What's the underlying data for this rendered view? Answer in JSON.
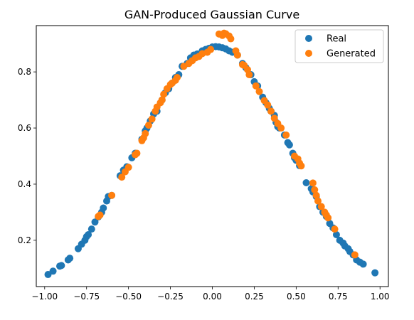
{
  "chart_data": {
    "type": "scatter",
    "title": "GAN-Produced Gaussian Curve",
    "xlabel": "",
    "ylabel": "",
    "xlim": [
      -1.05,
      1.05
    ],
    "ylim": [
      0.035,
      0.965
    ],
    "xticks": [
      -1.0,
      -0.75,
      -0.5,
      -0.25,
      0.0,
      0.25,
      0.5,
      0.75,
      1.0
    ],
    "xtick_labels": [
      "−1.00",
      "−0.75",
      "−0.50",
      "−0.25",
      "0.00",
      "0.25",
      "0.50",
      "0.75",
      "1.00"
    ],
    "yticks": [
      0.2,
      0.4,
      0.6,
      0.8
    ],
    "ytick_labels": [
      "0.2",
      "0.4",
      "0.6",
      "0.8"
    ],
    "grid": false,
    "legend_position": "top-right",
    "series": [
      {
        "name": "Real",
        "color": "#1f77b4",
        "points": [
          [
            -0.98,
            0.078
          ],
          [
            -0.95,
            0.09
          ],
          [
            -0.91,
            0.108
          ],
          [
            -0.9,
            0.11
          ],
          [
            -0.86,
            0.13
          ],
          [
            -0.85,
            0.136
          ],
          [
            -0.8,
            0.17
          ],
          [
            -0.78,
            0.186
          ],
          [
            -0.76,
            0.2
          ],
          [
            -0.75,
            0.213
          ],
          [
            -0.74,
            0.22
          ],
          [
            -0.72,
            0.24
          ],
          [
            -0.7,
            0.265
          ],
          [
            -0.68,
            0.283
          ],
          [
            -0.66,
            0.3
          ],
          [
            -0.65,
            0.315
          ],
          [
            -0.63,
            0.34
          ],
          [
            -0.62,
            0.356
          ],
          [
            -0.6,
            0.36
          ],
          [
            -0.55,
            0.43
          ],
          [
            -0.53,
            0.45
          ],
          [
            -0.51,
            0.462
          ],
          [
            -0.48,
            0.494
          ],
          [
            -0.46,
            0.51
          ],
          [
            -0.42,
            0.56
          ],
          [
            -0.4,
            0.59
          ],
          [
            -0.39,
            0.6
          ],
          [
            -0.37,
            0.625
          ],
          [
            -0.35,
            0.65
          ],
          [
            -0.33,
            0.66
          ],
          [
            -0.3,
            0.7
          ],
          [
            -0.28,
            0.726
          ],
          [
            -0.26,
            0.74
          ],
          [
            -0.24,
            0.76
          ],
          [
            -0.22,
            0.78
          ],
          [
            -0.2,
            0.79
          ],
          [
            -0.18,
            0.82
          ],
          [
            -0.15,
            0.83
          ],
          [
            -0.13,
            0.85
          ],
          [
            -0.11,
            0.86
          ],
          [
            -0.09,
            0.864
          ],
          [
            -0.06,
            0.875
          ],
          [
            -0.04,
            0.88
          ],
          [
            -0.02,
            0.884
          ],
          [
            0.0,
            0.889
          ],
          [
            0.02,
            0.89
          ],
          [
            0.04,
            0.889
          ],
          [
            0.06,
            0.886
          ],
          [
            0.08,
            0.882
          ],
          [
            0.1,
            0.875
          ],
          [
            0.12,
            0.87
          ],
          [
            0.15,
            0.86
          ],
          [
            0.18,
            0.83
          ],
          [
            0.2,
            0.815
          ],
          [
            0.23,
            0.79
          ],
          [
            0.25,
            0.765
          ],
          [
            0.27,
            0.75
          ],
          [
            0.3,
            0.71
          ],
          [
            0.32,
            0.69
          ],
          [
            0.34,
            0.67
          ],
          [
            0.35,
            0.66
          ],
          [
            0.37,
            0.645
          ],
          [
            0.38,
            0.62
          ],
          [
            0.39,
            0.605
          ],
          [
            0.4,
            0.6
          ],
          [
            0.43,
            0.575
          ],
          [
            0.45,
            0.548
          ],
          [
            0.46,
            0.54
          ],
          [
            0.48,
            0.51
          ],
          [
            0.49,
            0.494
          ],
          [
            0.5,
            0.485
          ],
          [
            0.52,
            0.466
          ],
          [
            0.56,
            0.405
          ],
          [
            0.59,
            0.384
          ],
          [
            0.6,
            0.372
          ],
          [
            0.62,
            0.356
          ],
          [
            0.64,
            0.32
          ],
          [
            0.66,
            0.3
          ],
          [
            0.68,
            0.285
          ],
          [
            0.7,
            0.26
          ],
          [
            0.72,
            0.244
          ],
          [
            0.74,
            0.22
          ],
          [
            0.76,
            0.2
          ],
          [
            0.78,
            0.19
          ],
          [
            0.79,
            0.18
          ],
          [
            0.81,
            0.17
          ],
          [
            0.82,
            0.16
          ],
          [
            0.84,
            0.148
          ],
          [
            0.86,
            0.13
          ],
          [
            0.88,
            0.122
          ],
          [
            0.9,
            0.115
          ],
          [
            0.97,
            0.084
          ]
        ]
      },
      {
        "name": "Generated",
        "color": "#ff7f0e",
        "points": [
          [
            -0.68,
            0.285
          ],
          [
            -0.67,
            0.29
          ],
          [
            -0.6,
            0.36
          ],
          [
            -0.54,
            0.425
          ],
          [
            -0.52,
            0.444
          ],
          [
            -0.5,
            0.46
          ],
          [
            -0.46,
            0.505
          ],
          [
            -0.45,
            0.51
          ],
          [
            -0.42,
            0.555
          ],
          [
            -0.41,
            0.565
          ],
          [
            -0.4,
            0.58
          ],
          [
            -0.38,
            0.61
          ],
          [
            -0.36,
            0.632
          ],
          [
            -0.34,
            0.66
          ],
          [
            -0.33,
            0.675
          ],
          [
            -0.31,
            0.69
          ],
          [
            -0.3,
            0.7
          ],
          [
            -0.29,
            0.72
          ],
          [
            -0.27,
            0.74
          ],
          [
            -0.25,
            0.755
          ],
          [
            -0.24,
            0.76
          ],
          [
            -0.22,
            0.77
          ],
          [
            -0.21,
            0.78
          ],
          [
            -0.17,
            0.82
          ],
          [
            -0.14,
            0.83
          ],
          [
            -0.12,
            0.84
          ],
          [
            -0.1,
            0.85
          ],
          [
            -0.08,
            0.855
          ],
          [
            -0.06,
            0.865
          ],
          [
            -0.03,
            0.87
          ],
          [
            -0.01,
            0.88
          ],
          [
            0.04,
            0.935
          ],
          [
            0.06,
            0.93
          ],
          [
            0.07,
            0.938
          ],
          [
            0.08,
            0.936
          ],
          [
            0.1,
            0.928
          ],
          [
            0.11,
            0.918
          ],
          [
            0.14,
            0.875
          ],
          [
            0.15,
            0.86
          ],
          [
            0.18,
            0.826
          ],
          [
            0.19,
            0.823
          ],
          [
            0.21,
            0.808
          ],
          [
            0.22,
            0.79
          ],
          [
            0.26,
            0.75
          ],
          [
            0.28,
            0.73
          ],
          [
            0.31,
            0.698
          ],
          [
            0.33,
            0.682
          ],
          [
            0.35,
            0.66
          ],
          [
            0.37,
            0.635
          ],
          [
            0.39,
            0.616
          ],
          [
            0.41,
            0.6
          ],
          [
            0.44,
            0.575
          ],
          [
            0.49,
            0.5
          ],
          [
            0.51,
            0.49
          ],
          [
            0.52,
            0.475
          ],
          [
            0.53,
            0.465
          ],
          [
            0.6,
            0.404
          ],
          [
            0.61,
            0.38
          ],
          [
            0.62,
            0.36
          ],
          [
            0.63,
            0.34
          ],
          [
            0.65,
            0.32
          ],
          [
            0.67,
            0.3
          ],
          [
            0.68,
            0.29
          ],
          [
            0.69,
            0.28
          ],
          [
            0.73,
            0.24
          ],
          [
            0.85,
            0.148
          ]
        ]
      }
    ]
  }
}
